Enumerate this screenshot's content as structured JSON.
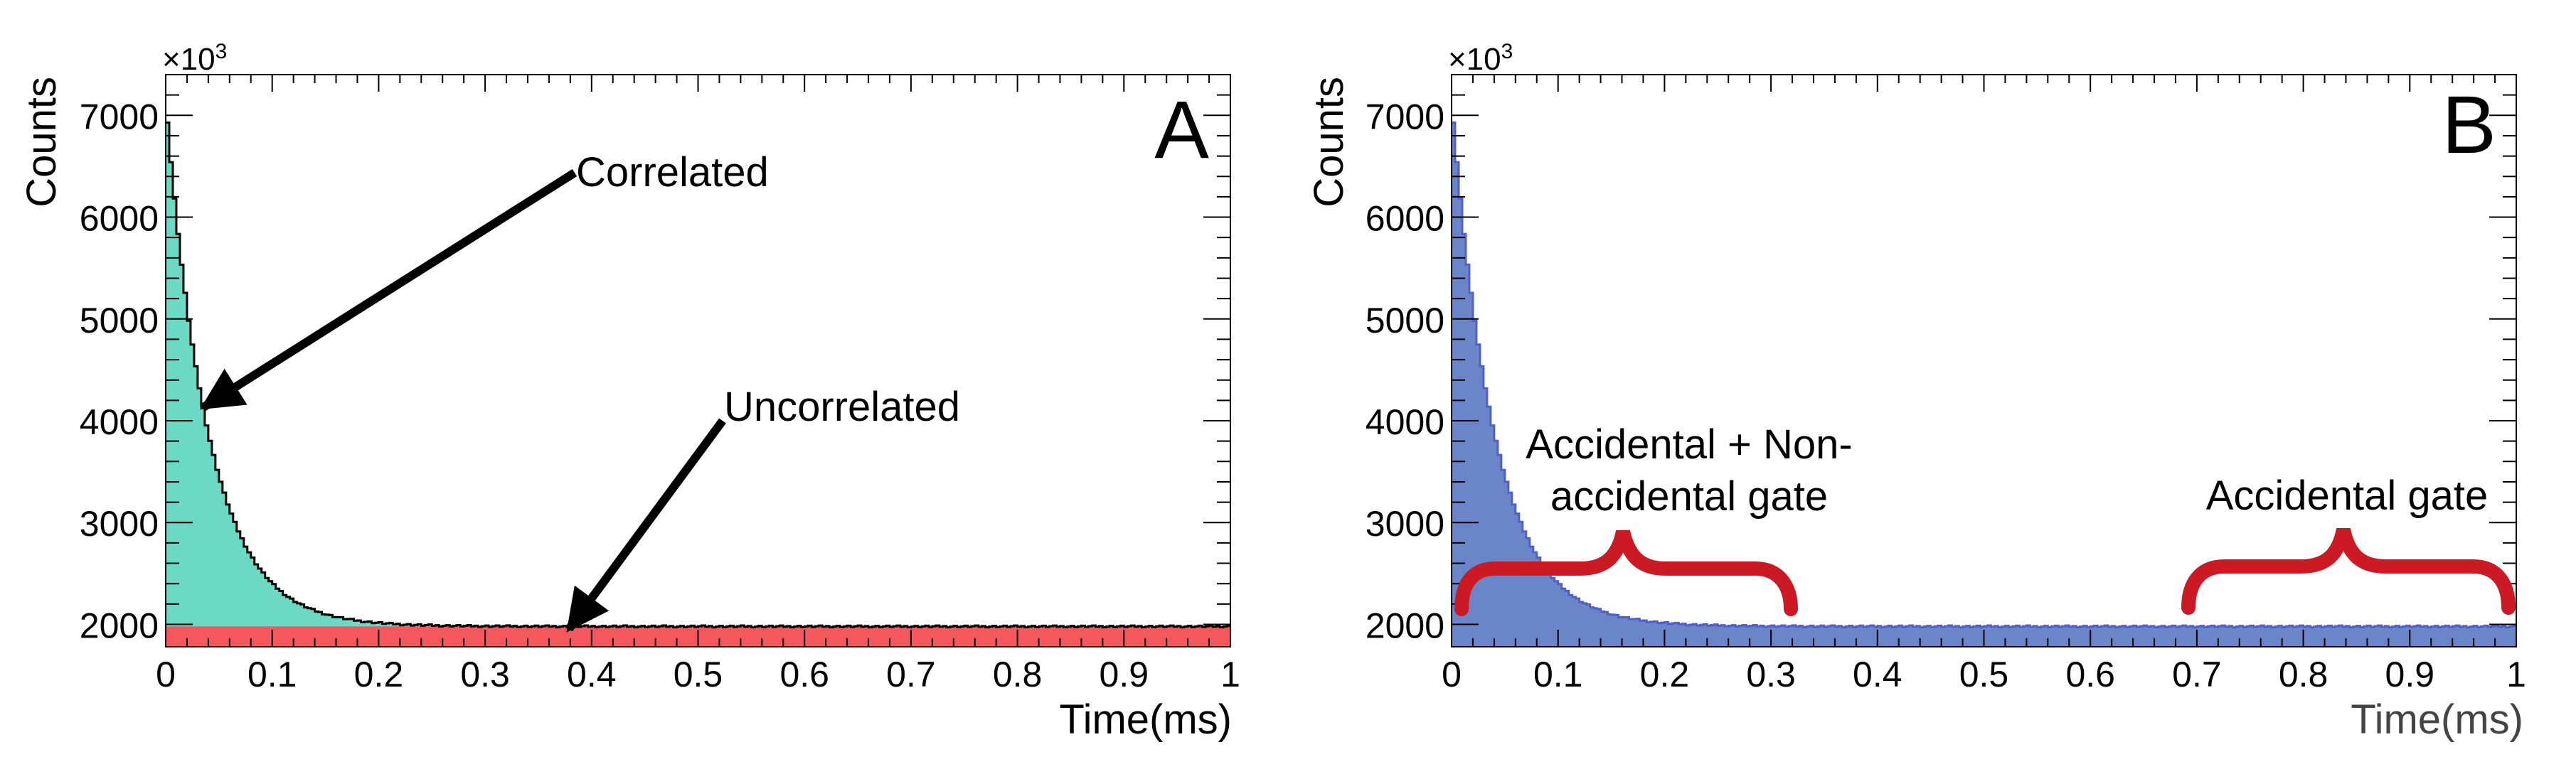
{
  "chart_data": [
    {
      "type": "area",
      "panel_label": "A",
      "xlabel": "Time(ms)",
      "ylabel": "Counts",
      "y_multiplier": "×10",
      "y_multiplier_exp": "3",
      "xlim": [
        0,
        1
      ],
      "ylim": [
        1780,
        7400
      ],
      "x_ticks": [
        "0",
        "0.1",
        "0.2",
        "0.3",
        "0.4",
        "0.5",
        "0.6",
        "0.7",
        "0.8",
        "0.9",
        "1"
      ],
      "y_ticks": [
        "2000",
        "3000",
        "4000",
        "5000",
        "6000",
        "7000"
      ],
      "grid": false,
      "series": [
        {
          "name": "Correlated",
          "color": "#6bd9c3",
          "kind": "decaying histogram",
          "peak": 7150,
          "tau_ms": 0.04,
          "plateau": 1980
        },
        {
          "name": "Uncorrelated",
          "color": "#f5585c",
          "kind": "flat histogram",
          "value": 1980
        }
      ],
      "annotations": [
        {
          "text": "Correlated",
          "points_to": {
            "x": 0.035,
            "y": 4100
          }
        },
        {
          "text": "Uncorrelated",
          "points_to": {
            "x": 0.375,
            "y": 1990
          }
        }
      ]
    },
    {
      "type": "area",
      "panel_label": "B",
      "xlabel": "Time(ms)",
      "ylabel": "Counts",
      "y_multiplier": "×10",
      "y_multiplier_exp": "3",
      "xlim": [
        0,
        1
      ],
      "ylim": [
        1780,
        7400
      ],
      "x_ticks": [
        "0",
        "0.1",
        "0.2",
        "0.3",
        "0.4",
        "0.5",
        "0.6",
        "0.7",
        "0.8",
        "0.9",
        "1"
      ],
      "y_ticks": [
        "2000",
        "3000",
        "4000",
        "5000",
        "6000",
        "7000"
      ],
      "grid": false,
      "series": [
        {
          "name": "Counts",
          "color": "#6b85c9",
          "kind": "decaying histogram",
          "peak": 7150,
          "tau_ms": 0.04,
          "plateau": 1980
        }
      ],
      "annotations": [
        {
          "text_lines": [
            "Accidental + Non-",
            "accidental gate"
          ],
          "gate_range_ms": [
            0.01,
            0.31
          ],
          "brace_color": "#cc1a24"
        },
        {
          "text_lines": [
            "Accidental gate"
          ],
          "gate_range_ms": [
            0.69,
            0.99
          ],
          "brace_color": "#cc1a24"
        }
      ]
    }
  ]
}
